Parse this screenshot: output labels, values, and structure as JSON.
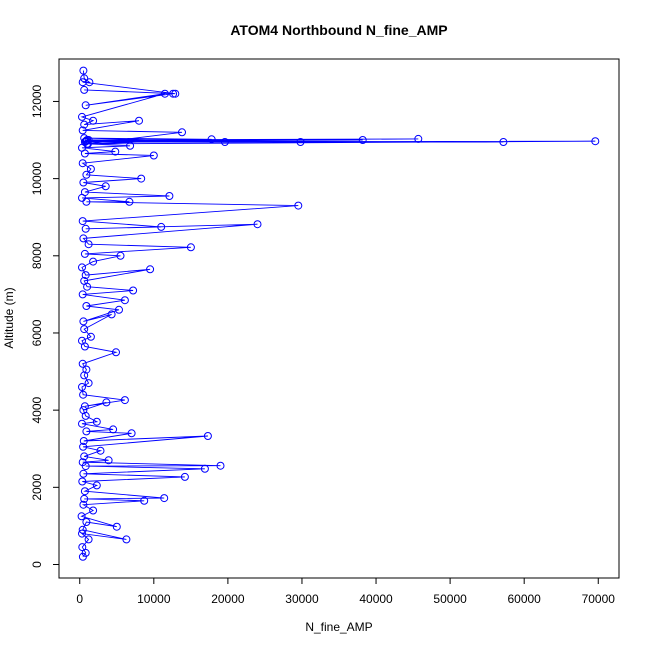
{
  "chart_data": {
    "type": "line",
    "title": "ATOM4 Northbound N_fine_AMP",
    "xlabel": "N_fine_AMP",
    "ylabel": "Altitude (m)",
    "xlim": [
      -2800,
      72800
    ],
    "ylim": [
      -350,
      13100
    ],
    "xticks": [
      0,
      10000,
      20000,
      30000,
      40000,
      50000,
      60000,
      70000
    ],
    "yticks": [
      0,
      2000,
      4000,
      6000,
      8000,
      10000,
      12000
    ],
    "grid": false,
    "legend": "none",
    "color": "#0000ff",
    "marker": "open-circle",
    "series": [
      {
        "points": [
          [
            420,
            200
          ],
          [
            800,
            300
          ],
          [
            350,
            450
          ],
          [
            1200,
            650
          ],
          [
            300,
            800
          ],
          [
            6300,
            650
          ],
          [
            400,
            900
          ],
          [
            900,
            1100
          ],
          [
            5000,
            980
          ],
          [
            250,
            1250
          ],
          [
            1800,
            1400
          ],
          [
            500,
            1550
          ],
          [
            8700,
            1650
          ],
          [
            600,
            1700
          ],
          [
            11400,
            1720
          ],
          [
            700,
            1900
          ],
          [
            2300,
            2050
          ],
          [
            350,
            2150
          ],
          [
            14200,
            2270
          ],
          [
            500,
            2350
          ],
          [
            16900,
            2480
          ],
          [
            800,
            2550
          ],
          [
            19000,
            2560
          ],
          [
            400,
            2650
          ],
          [
            3900,
            2700
          ],
          [
            600,
            2800
          ],
          [
            2800,
            2950
          ],
          [
            450,
            3050
          ],
          [
            17300,
            3330
          ],
          [
            550,
            3200
          ],
          [
            7000,
            3400
          ],
          [
            900,
            3450
          ],
          [
            4500,
            3500
          ],
          [
            300,
            3650
          ],
          [
            2300,
            3700
          ],
          [
            800,
            3850
          ],
          [
            500,
            4000
          ],
          [
            3600,
            4200
          ],
          [
            700,
            4100
          ],
          [
            6100,
            4260
          ],
          [
            450,
            4400
          ],
          [
            300,
            4600
          ],
          [
            1200,
            4700
          ],
          [
            600,
            4900
          ],
          [
            900,
            5050
          ],
          [
            400,
            5200
          ],
          [
            4900,
            5500
          ],
          [
            700,
            5650
          ],
          [
            300,
            5800
          ],
          [
            1500,
            5900
          ],
          [
            600,
            6100
          ],
          [
            4300,
            6480
          ],
          [
            500,
            6300
          ],
          [
            5300,
            6600
          ],
          [
            900,
            6700
          ],
          [
            6100,
            6850
          ],
          [
            400,
            7000
          ],
          [
            7200,
            7100
          ],
          [
            1000,
            7200
          ],
          [
            600,
            7350
          ],
          [
            9500,
            7650
          ],
          [
            800,
            7500
          ],
          [
            300,
            7700
          ],
          [
            1800,
            7850
          ],
          [
            5500,
            8000
          ],
          [
            700,
            8050
          ],
          [
            15000,
            8220
          ],
          [
            1200,
            8300
          ],
          [
            500,
            8450
          ],
          [
            24000,
            8820
          ],
          [
            800,
            8700
          ],
          [
            11000,
            8750
          ],
          [
            400,
            8900
          ],
          [
            29500,
            9300
          ],
          [
            900,
            9400
          ],
          [
            6700,
            9400
          ],
          [
            300,
            9500
          ],
          [
            12100,
            9550
          ],
          [
            700,
            9650
          ],
          [
            3500,
            9800
          ],
          [
            500,
            9900
          ],
          [
            8300,
            10000
          ],
          [
            900,
            10100
          ],
          [
            1500,
            10250
          ],
          [
            400,
            10400
          ],
          [
            10000,
            10600
          ],
          [
            700,
            10650
          ],
          [
            4800,
            10700
          ],
          [
            300,
            10800
          ],
          [
            6800,
            10850
          ],
          [
            1100,
            10900
          ],
          [
            69600,
            10970
          ],
          [
            700,
            10950
          ],
          [
            57200,
            10950
          ],
          [
            900,
            10980
          ],
          [
            45700,
            11030
          ],
          [
            1200,
            11000
          ],
          [
            38200,
            11000
          ],
          [
            800,
            10970
          ],
          [
            29800,
            10950
          ],
          [
            1000,
            11000
          ],
          [
            19600,
            10950
          ],
          [
            600,
            11050
          ],
          [
            17800,
            11020
          ],
          [
            1000,
            10900
          ],
          [
            13800,
            11200
          ],
          [
            400,
            11250
          ],
          [
            8000,
            11500
          ],
          [
            600,
            11400
          ],
          [
            1800,
            11500
          ],
          [
            300,
            11600
          ],
          [
            11500,
            12200
          ],
          [
            800,
            11900
          ],
          [
            12600,
            12200
          ],
          [
            600,
            12300
          ],
          [
            12900,
            12200
          ],
          [
            400,
            12500
          ],
          [
            1300,
            12500
          ],
          [
            600,
            12600
          ],
          [
            500,
            12800
          ]
        ]
      }
    ]
  }
}
